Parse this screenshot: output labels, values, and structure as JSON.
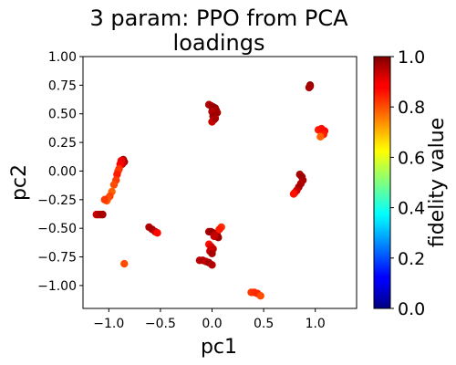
{
  "chart_data": {
    "type": "scatter",
    "title_lines": [
      "3 param:  PPO from PCA",
      "loadings"
    ],
    "xlabel": "pc1",
    "ylabel": "pc2",
    "xlim": [
      -1.25,
      1.4
    ],
    "ylim": [
      -1.2,
      1.0
    ],
    "x_ticks": [
      -1.0,
      -0.5,
      0.0,
      0.5,
      1.0
    ],
    "x_tick_labels": [
      "−1.0",
      "−0.5",
      "0.0",
      "0.5",
      "1.0"
    ],
    "y_ticks": [
      1.0,
      0.75,
      0.5,
      0.25,
      0.0,
      -0.25,
      -0.5,
      -0.75,
      -1.0
    ],
    "y_tick_labels": [
      "1.00",
      "0.75",
      "0.50",
      "0.25",
      "0.00",
      "−0.25",
      "−0.50",
      "−0.75",
      "−1.00"
    ],
    "colorbar": {
      "label": "fidelity value",
      "colormap": "jet",
      "range": [
        0.0,
        1.0
      ],
      "ticks": [
        0.0,
        0.2,
        0.4,
        0.6,
        0.8,
        1.0
      ],
      "tick_labels": [
        "0.0",
        "0.2",
        "0.4",
        "0.6",
        "0.8",
        "1.0"
      ]
    },
    "grid": false,
    "points": [
      {
        "x": 0.95,
        "y": 0.74,
        "v": 0.97
      },
      {
        "x": 0.95,
        "y": 0.75,
        "v": 0.98
      },
      {
        "x": 0.94,
        "y": 0.73,
        "v": 0.96
      },
      {
        "x": -0.03,
        "y": 0.58,
        "v": 0.95
      },
      {
        "x": -0.01,
        "y": 0.57,
        "v": 0.96
      },
      {
        "x": 0.01,
        "y": 0.56,
        "v": 0.97
      },
      {
        "x": 0.03,
        "y": 0.55,
        "v": 0.98
      },
      {
        "x": 0.04,
        "y": 0.53,
        "v": 0.97
      },
      {
        "x": 0.05,
        "y": 0.51,
        "v": 0.96
      },
      {
        "x": 0.02,
        "y": 0.5,
        "v": 0.98
      },
      {
        "x": 0.0,
        "y": 0.52,
        "v": 0.95
      },
      {
        "x": 0.01,
        "y": 0.48,
        "v": 0.97
      },
      {
        "x": 0.02,
        "y": 0.45,
        "v": 0.95
      },
      {
        "x": 0.0,
        "y": 0.43,
        "v": 0.93
      },
      {
        "x": 0.03,
        "y": 0.46,
        "v": 0.96
      },
      {
        "x": 1.03,
        "y": 0.36,
        "v": 0.85
      },
      {
        "x": 1.06,
        "y": 0.37,
        "v": 0.86
      },
      {
        "x": 1.09,
        "y": 0.35,
        "v": 0.87
      },
      {
        "x": 1.08,
        "y": 0.32,
        "v": 0.85
      },
      {
        "x": 1.05,
        "y": 0.3,
        "v": 0.78
      },
      {
        "x": -0.86,
        "y": 0.1,
        "v": 0.95
      },
      {
        "x": -0.85,
        "y": 0.08,
        "v": 0.96
      },
      {
        "x": -0.87,
        "y": 0.06,
        "v": 0.93
      },
      {
        "x": -0.88,
        "y": 0.09,
        "v": 0.89
      },
      {
        "x": -0.89,
        "y": 0.06,
        "v": 0.88
      },
      {
        "x": -0.9,
        "y": 0.02,
        "v": 0.83
      },
      {
        "x": -0.91,
        "y": 0.0,
        "v": 0.82
      },
      {
        "x": -0.92,
        "y": -0.03,
        "v": 0.85
      },
      {
        "x": -0.93,
        "y": -0.08,
        "v": 0.82
      },
      {
        "x": -0.95,
        "y": -0.12,
        "v": 0.8
      },
      {
        "x": -0.97,
        "y": -0.18,
        "v": 0.78
      },
      {
        "x": -0.99,
        "y": -0.22,
        "v": 0.81
      },
      {
        "x": -1.01,
        "y": -0.24,
        "v": 0.8
      },
      {
        "x": -1.02,
        "y": -0.26,
        "v": 0.79
      },
      {
        "x": -1.04,
        "y": -0.25,
        "v": 0.82
      },
      {
        "x": 0.85,
        "y": -0.03,
        "v": 0.96
      },
      {
        "x": 0.87,
        "y": -0.05,
        "v": 0.97
      },
      {
        "x": 0.88,
        "y": -0.08,
        "v": 0.96
      },
      {
        "x": 0.86,
        "y": -0.11,
        "v": 0.95
      },
      {
        "x": 0.84,
        "y": -0.14,
        "v": 0.96
      },
      {
        "x": 0.82,
        "y": -0.17,
        "v": 0.93
      },
      {
        "x": 0.8,
        "y": -0.19,
        "v": 0.9
      },
      {
        "x": 0.79,
        "y": -0.2,
        "v": 0.86
      },
      {
        "x": -1.12,
        "y": -0.38,
        "v": 0.92
      },
      {
        "x": -1.1,
        "y": -0.38,
        "v": 0.94
      },
      {
        "x": -1.08,
        "y": -0.38,
        "v": 0.95
      },
      {
        "x": -1.06,
        "y": -0.38,
        "v": 0.96
      },
      {
        "x": -0.03,
        "y": -0.53,
        "v": 0.95
      },
      {
        "x": -0.01,
        "y": -0.53,
        "v": 0.97
      },
      {
        "x": 0.01,
        "y": -0.54,
        "v": 0.98
      },
      {
        "x": 0.03,
        "y": -0.55,
        "v": 0.96
      },
      {
        "x": 0.05,
        "y": -0.56,
        "v": 0.94
      },
      {
        "x": 0.06,
        "y": -0.58,
        "v": 0.97
      },
      {
        "x": 0.02,
        "y": -0.57,
        "v": 0.93
      },
      {
        "x": 0.09,
        "y": -0.49,
        "v": 0.83
      },
      {
        "x": 0.07,
        "y": -0.51,
        "v": 0.85
      },
      {
        "x": -0.61,
        "y": -0.49,
        "v": 0.95
      },
      {
        "x": -0.58,
        "y": -0.51,
        "v": 0.96
      },
      {
        "x": -0.55,
        "y": -0.53,
        "v": 0.94
      },
      {
        "x": -0.53,
        "y": -0.54,
        "v": 0.87
      },
      {
        "x": -0.03,
        "y": -0.64,
        "v": 0.86
      },
      {
        "x": -0.01,
        "y": -0.66,
        "v": 0.9
      },
      {
        "x": 0.01,
        "y": -0.68,
        "v": 0.93
      },
      {
        "x": -0.02,
        "y": -0.7,
        "v": 0.92
      },
      {
        "x": 0.0,
        "y": -0.72,
        "v": 0.96
      },
      {
        "x": -0.12,
        "y": -0.78,
        "v": 0.94
      },
      {
        "x": -0.09,
        "y": -0.78,
        "v": 0.95
      },
      {
        "x": -0.06,
        "y": -0.79,
        "v": 0.94
      },
      {
        "x": -0.03,
        "y": -0.8,
        "v": 0.96
      },
      {
        "x": 0.0,
        "y": -0.82,
        "v": 0.95
      },
      {
        "x": -0.85,
        "y": -0.81,
        "v": 0.8
      },
      {
        "x": 0.38,
        "y": -1.06,
        "v": 0.82
      },
      {
        "x": 0.41,
        "y": -1.06,
        "v": 0.83
      },
      {
        "x": 0.44,
        "y": -1.07,
        "v": 0.84
      },
      {
        "x": 0.47,
        "y": -1.09,
        "v": 0.8
      }
    ]
  }
}
